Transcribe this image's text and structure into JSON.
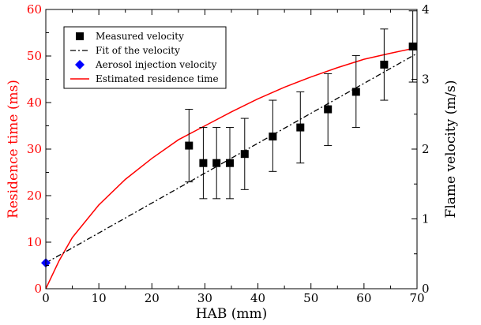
{
  "chart_data": {
    "type": "scatter",
    "xlabel": "HAB (mm)",
    "ylabel_left": "Residence time (ms)",
    "ylabel_right": "Flame velocity (m/s)",
    "xlim": [
      0,
      70
    ],
    "ylim_left": [
      0,
      60
    ],
    "ylim_right": [
      0,
      4
    ],
    "x_ticks": [
      0,
      10,
      20,
      30,
      40,
      50,
      60,
      70
    ],
    "y_ticks_left": [
      0,
      10,
      20,
      30,
      40,
      50,
      60
    ],
    "y_ticks_right": [
      0,
      1,
      2,
      3,
      4
    ],
    "grid": false,
    "legend_position": "top-left",
    "colors": {
      "residence": "#ff0000",
      "measured": "#000000",
      "fit": "#000000",
      "injection": "#0000ff"
    },
    "series": [
      {
        "name": "Measured velocity",
        "axis": "right",
        "marker": "square",
        "points": [
          {
            "x": 27.0,
            "y": 2.05,
            "lo": 1.53,
            "hi": 2.57
          },
          {
            "x": 29.7,
            "y": 1.8,
            "lo": 1.29,
            "hi": 2.31
          },
          {
            "x": 32.2,
            "y": 1.8,
            "lo": 1.29,
            "hi": 2.31
          },
          {
            "x": 34.7,
            "y": 1.8,
            "lo": 1.29,
            "hi": 2.31
          },
          {
            "x": 37.5,
            "y": 1.93,
            "lo": 1.42,
            "hi": 2.44
          },
          {
            "x": 42.8,
            "y": 2.18,
            "lo": 1.68,
            "hi": 2.7
          },
          {
            "x": 48.0,
            "y": 2.31,
            "lo": 1.8,
            "hi": 2.82
          },
          {
            "x": 53.2,
            "y": 2.57,
            "lo": 2.05,
            "hi": 3.08
          },
          {
            "x": 58.5,
            "y": 2.82,
            "lo": 2.31,
            "hi": 3.34
          },
          {
            "x": 63.8,
            "y": 3.21,
            "lo": 2.7,
            "hi": 3.72
          },
          {
            "x": 69.2,
            "y": 3.47,
            "lo": 2.96,
            "hi": 3.98
          }
        ]
      },
      {
        "name": "Fit of the velocity",
        "axis": "right",
        "style": "dash-dot",
        "x": [
          0,
          70
        ],
        "y": [
          0.37,
          3.37
        ]
      },
      {
        "name": "Aerosol injection velocity",
        "axis": "right",
        "marker": "diamond",
        "x": [
          0
        ],
        "y": [
          0.37
        ]
      },
      {
        "name": "Estimated residence time",
        "axis": "left",
        "style": "solid",
        "x": [
          0,
          2.5,
          5,
          10,
          15,
          20,
          25,
          30,
          35,
          40,
          45,
          50,
          55,
          60,
          65,
          70
        ],
        "y": [
          0,
          6,
          11,
          18,
          23.5,
          28,
          32,
          35,
          38,
          40.8,
          43.3,
          45.5,
          47.5,
          49.3,
          50.6,
          51.8
        ]
      }
    ]
  }
}
